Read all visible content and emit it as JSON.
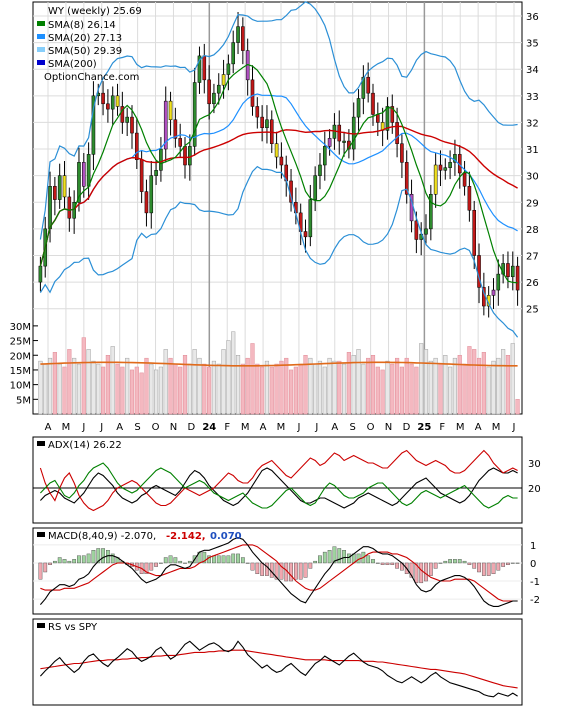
{
  "chart_data": [
    {
      "type": "candlestick",
      "title": "WY (weekly) 25.69",
      "legend": [
        {
          "label": "SMA(8) 26.14",
          "color": "#008000"
        },
        {
          "label": "SMA(20) 27.13",
          "color": "#1e90ff"
        },
        {
          "label": "SMA(50) 29.39",
          "color": "#87cefa"
        },
        {
          "label": "SMA(200)",
          "color": "#0000cd"
        },
        {
          "label": "OptionChance.com",
          "color": "#d00000"
        }
      ],
      "y_ticks": [
        "36",
        "35",
        "34",
        "33",
        "32",
        "31",
        "30",
        "29",
        "28",
        "27",
        "26",
        "25"
      ],
      "ylim": [
        24.5,
        36.3
      ],
      "x_labels": [
        "A",
        "M",
        "J",
        "J",
        "A",
        "S",
        "O",
        "N",
        "D",
        "24",
        "F",
        "M",
        "A",
        "M",
        "J",
        "J",
        "A",
        "S",
        "O",
        "N",
        "D",
        "25",
        "F",
        "M",
        "A",
        "M",
        "J"
      ],
      "weekly_close": [
        26.6,
        28.0,
        29.6,
        29.1,
        30.0,
        29.2,
        28.4,
        29.0,
        30.5,
        29.6,
        30.8,
        33.0,
        33.1,
        32.7,
        32.5,
        33.0,
        32.6,
        32.0,
        32.2,
        31.6,
        30.6,
        29.4,
        28.6,
        30.0,
        30.2,
        31.0,
        32.8,
        32.1,
        31.4,
        31.1,
        30.4,
        31.1,
        33.5,
        34.5,
        33.6,
        32.7,
        33.1,
        33.4,
        33.8,
        34.2,
        35.0,
        35.6,
        34.7,
        33.6,
        32.6,
        32.2,
        31.8,
        32.1,
        31.2,
        30.7,
        30.4,
        29.8,
        29.0,
        28.6,
        27.9,
        27.7,
        29.1,
        30.0,
        30.4,
        31.1,
        31.4,
        31.9,
        31.3,
        31.3,
        31.0,
        32.2,
        32.9,
        33.7,
        33.1,
        32.3,
        32.0,
        31.7,
        32.6,
        32.0,
        31.2,
        30.5,
        29.3,
        28.3,
        27.6,
        27.8,
        28.0,
        29.3,
        30.4,
        30.2,
        30.3,
        30.5,
        30.8,
        30.1,
        29.6,
        28.7,
        27.0,
        25.8,
        25.1,
        25.5,
        25.7,
        26.3,
        26.7,
        26.2,
        26.6,
        25.7
      ],
      "volume_ticks": [
        "30M",
        "25M",
        "20M",
        "15M",
        "10M",
        "5M"
      ],
      "volume_max": 32,
      "volume_millions": [
        18,
        17,
        19,
        21,
        17,
        16,
        22,
        19,
        17,
        26,
        22,
        18,
        17,
        16,
        20,
        23,
        17,
        16,
        19,
        15,
        16,
        14,
        19,
        17,
        15,
        16,
        22,
        19,
        17,
        16,
        20,
        17,
        22,
        19,
        17,
        16,
        18,
        17,
        22,
        25,
        28,
        20,
        17,
        19,
        24,
        17,
        16,
        18,
        16,
        17,
        18,
        19,
        15,
        16,
        17,
        20,
        19,
        17,
        18,
        16,
        19,
        18,
        18,
        17,
        21,
        20,
        22,
        17,
        19,
        20,
        16,
        15,
        18,
        17,
        19,
        16,
        19,
        17,
        16,
        24,
        22,
        18,
        19,
        17,
        20,
        16,
        19,
        20,
        17,
        23,
        22,
        19,
        21,
        16,
        18,
        19,
        22,
        20,
        24,
        5
      ],
      "volume_avg_level": 17
    },
    {
      "type": "line",
      "title": "ADX(14) 26.22",
      "y_ticks": [
        "30",
        "20"
      ],
      "ylim": [
        8,
        38
      ],
      "reference_line": 20,
      "series": [
        {
          "color": "#000000",
          "values": [
            15,
            17,
            18,
            19,
            18,
            16,
            15,
            14,
            16,
            18,
            21,
            24,
            26,
            25,
            23,
            21,
            18,
            16,
            15,
            14,
            15,
            17,
            18,
            20,
            21,
            20,
            19,
            18,
            17,
            19,
            22,
            25,
            27,
            26,
            24,
            21,
            19,
            17,
            15,
            14,
            13,
            14,
            16,
            18,
            21,
            24,
            27,
            28,
            27,
            25,
            23,
            21,
            19,
            17,
            15,
            14,
            14,
            15,
            16,
            16,
            15,
            14,
            13,
            12,
            13,
            14,
            16,
            17,
            18,
            17,
            16,
            15,
            14,
            13,
            14,
            16,
            18,
            20,
            22,
            23,
            24,
            22,
            20,
            18,
            17,
            16,
            15,
            14,
            15,
            17,
            20,
            23,
            25,
            27,
            28,
            27,
            26,
            26,
            27,
            26
          ]
        },
        {
          "color": "#cc0000",
          "values": [
            28,
            22,
            18,
            15,
            20,
            24,
            26,
            22,
            17,
            14,
            12,
            11,
            12,
            13,
            15,
            18,
            20,
            21,
            22,
            23,
            22,
            20,
            18,
            16,
            14,
            13,
            13,
            14,
            16,
            18,
            20,
            19,
            18,
            17,
            18,
            19,
            20,
            22,
            24,
            26,
            25,
            23,
            22,
            22,
            24,
            27,
            29,
            30,
            31,
            29,
            27,
            25,
            24,
            26,
            28,
            30,
            32,
            31,
            29,
            30,
            32,
            34,
            33,
            31,
            32,
            33,
            32,
            31,
            30,
            30,
            29,
            28,
            28,
            30,
            32,
            34,
            35,
            33,
            31,
            30,
            29,
            30,
            31,
            30,
            29,
            27,
            26,
            26,
            27,
            29,
            31,
            33,
            35,
            33,
            30,
            28,
            26,
            27,
            28,
            27
          ]
        },
        {
          "color": "#008000",
          "values": [
            18,
            20,
            22,
            23,
            20,
            17,
            16,
            18,
            21,
            23,
            26,
            28,
            29,
            30,
            28,
            25,
            22,
            20,
            19,
            18,
            19,
            21,
            23,
            25,
            27,
            28,
            27,
            26,
            24,
            22,
            20,
            21,
            22,
            23,
            22,
            20,
            18,
            17,
            16,
            15,
            16,
            17,
            18,
            16,
            14,
            13,
            12,
            12,
            13,
            15,
            17,
            19,
            20,
            18,
            16,
            14,
            13,
            14,
            17,
            20,
            22,
            21,
            19,
            17,
            16,
            16,
            17,
            18,
            20,
            21,
            22,
            22,
            20,
            18,
            16,
            14,
            13,
            14,
            16,
            18,
            19,
            18,
            17,
            16,
            17,
            18,
            19,
            20,
            21,
            19,
            17,
            15,
            13,
            12,
            13,
            14,
            16,
            17,
            16,
            16
          ]
        }
      ]
    },
    {
      "type": "line",
      "title": "MACD(8,40,9) -2.070,",
      "extra_values": [
        {
          "text": "-2.142,",
          "color": "#cc0000"
        },
        {
          "text": "0.070",
          "color": "#1f4fbf"
        }
      ],
      "y_ticks": [
        "1",
        "0",
        "-1",
        "-2"
      ],
      "ylim": [
        -2.6,
        1.6
      ],
      "series": [
        {
          "name": "MACD",
          "color": "#000000",
          "values": [
            -2.3,
            -2.0,
            -1.6,
            -1.4,
            -1.2,
            -1.2,
            -1.3,
            -1.2,
            -0.9,
            -0.8,
            -0.6,
            -0.2,
            0.1,
            0.3,
            0.4,
            0.4,
            0.3,
            0.1,
            -0.1,
            -0.3,
            -0.6,
            -0.9,
            -1.1,
            -1.0,
            -0.9,
            -0.7,
            -0.3,
            -0.1,
            -0.1,
            -0.2,
            -0.3,
            -0.2,
            0.2,
            0.6,
            0.7,
            0.7,
            0.8,
            0.9,
            1.0,
            1.1,
            1.3,
            1.4,
            1.3,
            1.0,
            0.6,
            0.3,
            0.0,
            -0.2,
            -0.5,
            -0.8,
            -1.1,
            -1.4,
            -1.7,
            -1.9,
            -2.1,
            -2.2,
            -1.8,
            -1.4,
            -1.0,
            -0.6,
            -0.3,
            0.1,
            0.2,
            0.3,
            0.3,
            0.5,
            0.7,
            0.9,
            0.9,
            0.8,
            0.6,
            0.5,
            0.5,
            0.4,
            0.2,
            0.0,
            -0.3,
            -0.7,
            -1.2,
            -1.5,
            -1.6,
            -1.5,
            -1.2,
            -1.0,
            -0.9,
            -0.8,
            -0.7,
            -0.7,
            -0.8,
            -1.0,
            -1.3,
            -1.7,
            -2.1,
            -2.3,
            -2.4,
            -2.4,
            -2.3,
            -2.2,
            -2.1,
            -2.1
          ]
        },
        {
          "name": "Signal",
          "color": "#cc0000",
          "values": [
            -1.4,
            -1.5,
            -1.5,
            -1.5,
            -1.5,
            -1.4,
            -1.4,
            -1.4,
            -1.3,
            -1.2,
            -1.1,
            -0.9,
            -0.7,
            -0.5,
            -0.3,
            -0.1,
            0.0,
            0.0,
            0.0,
            -0.1,
            -0.2,
            -0.3,
            -0.5,
            -0.6,
            -0.7,
            -0.7,
            -0.6,
            -0.5,
            -0.4,
            -0.3,
            -0.3,
            -0.3,
            -0.2,
            0.0,
            0.1,
            0.3,
            0.4,
            0.5,
            0.6,
            0.7,
            0.8,
            0.9,
            1.0,
            1.0,
            1.0,
            0.9,
            0.7,
            0.5,
            0.3,
            0.1,
            -0.2,
            -0.4,
            -0.7,
            -1.0,
            -1.2,
            -1.4,
            -1.5,
            -1.5,
            -1.4,
            -1.2,
            -1.0,
            -0.8,
            -0.6,
            -0.4,
            -0.2,
            0.0,
            0.2,
            0.3,
            0.5,
            0.6,
            0.6,
            0.6,
            0.6,
            0.5,
            0.5,
            0.4,
            0.3,
            0.1,
            -0.1,
            -0.4,
            -0.6,
            -0.8,
            -0.9,
            -1.0,
            -1.0,
            -1.0,
            -0.9,
            -0.9,
            -0.9,
            -0.9,
            -1.0,
            -1.2,
            -1.4,
            -1.6,
            -1.8,
            -2.0,
            -2.1,
            -2.1,
            -2.1,
            -2.1
          ]
        }
      ]
    },
    {
      "type": "line",
      "title": "RS vs SPY",
      "ylim": [
        0,
        100
      ],
      "series": [
        {
          "color": "#000000",
          "values": [
            35,
            42,
            48,
            55,
            60,
            52,
            46,
            40,
            45,
            55,
            62,
            65,
            58,
            52,
            48,
            55,
            60,
            66,
            72,
            68,
            60,
            55,
            58,
            62,
            70,
            74,
            66,
            58,
            62,
            70,
            78,
            82,
            76,
            70,
            74,
            78,
            80,
            76,
            70,
            68,
            72,
            82,
            74,
            64,
            58,
            52,
            46,
            50,
            44,
            40,
            42,
            48,
            52,
            46,
            40,
            36,
            44,
            52,
            56,
            62,
            58,
            54,
            50,
            56,
            62,
            66,
            60,
            54,
            50,
            48,
            46,
            42,
            36,
            32,
            28,
            26,
            30,
            34,
            30,
            26,
            30,
            36,
            40,
            34,
            30,
            26,
            24,
            22,
            20,
            18,
            16,
            14,
            10,
            8,
            7,
            12,
            10,
            8,
            12,
            8
          ]
        },
        {
          "color": "#cc0000",
          "values": [
            45,
            46,
            47,
            48,
            49,
            50,
            51,
            52,
            52,
            53,
            54,
            55,
            56,
            56,
            57,
            57,
            57,
            58,
            58,
            59,
            59,
            60,
            60,
            61,
            62,
            62,
            63,
            63,
            63,
            64,
            65,
            66,
            67,
            67,
            67,
            68,
            68,
            69,
            69,
            69,
            70,
            70,
            70,
            69,
            68,
            67,
            66,
            65,
            64,
            63,
            62,
            61,
            60,
            59,
            58,
            57,
            57,
            57,
            57,
            57,
            56,
            56,
            56,
            56,
            56,
            56,
            56,
            55,
            55,
            55,
            54,
            54,
            53,
            52,
            51,
            50,
            49,
            48,
            47,
            46,
            45,
            44,
            44,
            43,
            42,
            41,
            40,
            39,
            38,
            36,
            34,
            32,
            30,
            28,
            26,
            24,
            22,
            21,
            20,
            19
          ]
        }
      ]
    }
  ]
}
